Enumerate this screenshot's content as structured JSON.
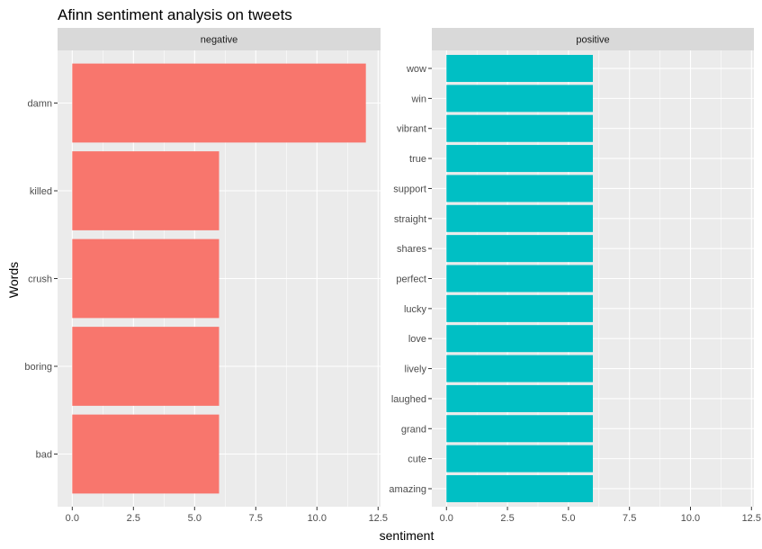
{
  "chart_data": {
    "type": "bar",
    "orientation": "horizontal",
    "title": "Afinn sentiment analysis on tweets",
    "xlabel": "sentiment",
    "ylabel": "Words",
    "xlim": [
      -0.6,
      12.6
    ],
    "xticks": [
      0,
      2.5,
      5,
      7.5,
      10,
      12.5
    ],
    "xtick_labels": [
      "0.0",
      "2.5",
      "5.0",
      "7.5",
      "10.0",
      "12.5"
    ],
    "grid": true,
    "legend": "none",
    "panels": [
      {
        "name": "negative",
        "color": "#F8766D",
        "categories": [
          "bad",
          "boring",
          "crush",
          "killed",
          "damn"
        ],
        "values": [
          6,
          6,
          6,
          6,
          12
        ]
      },
      {
        "name": "positive",
        "color": "#00BFC4",
        "categories": [
          "amazing",
          "cute",
          "grand",
          "laughed",
          "lively",
          "love",
          "lucky",
          "perfect",
          "shares",
          "straight",
          "support",
          "true",
          "vibrant",
          "win",
          "wow"
        ],
        "values": [
          6,
          6,
          6,
          6,
          6,
          6,
          6,
          6,
          6,
          6,
          6,
          6,
          6,
          6,
          6
        ]
      }
    ]
  },
  "colors": {
    "panel_bg": "#EBEBEB",
    "strip_bg": "#D9D9D9",
    "grid": "#FFFFFF"
  }
}
